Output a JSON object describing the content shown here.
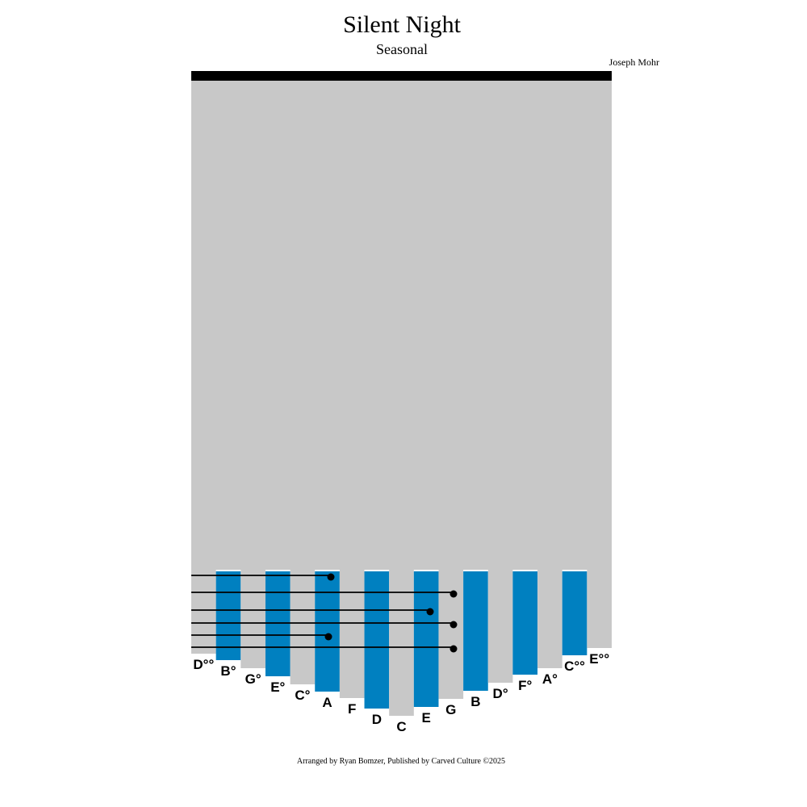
{
  "header": {
    "title": "Silent Night",
    "subtitle": "Seasonal",
    "composer": "Joseph Mohr"
  },
  "keys": [
    "D°°",
    "B°",
    "G°",
    "E°",
    "C°",
    "A",
    "F",
    "D",
    "C",
    "E",
    "G",
    "B",
    "D°",
    "F°",
    "A°",
    "C°°",
    "E°°"
  ],
  "footer": "Arranged by Ryan Bomzer, Published by Carved Culture ©2025"
}
